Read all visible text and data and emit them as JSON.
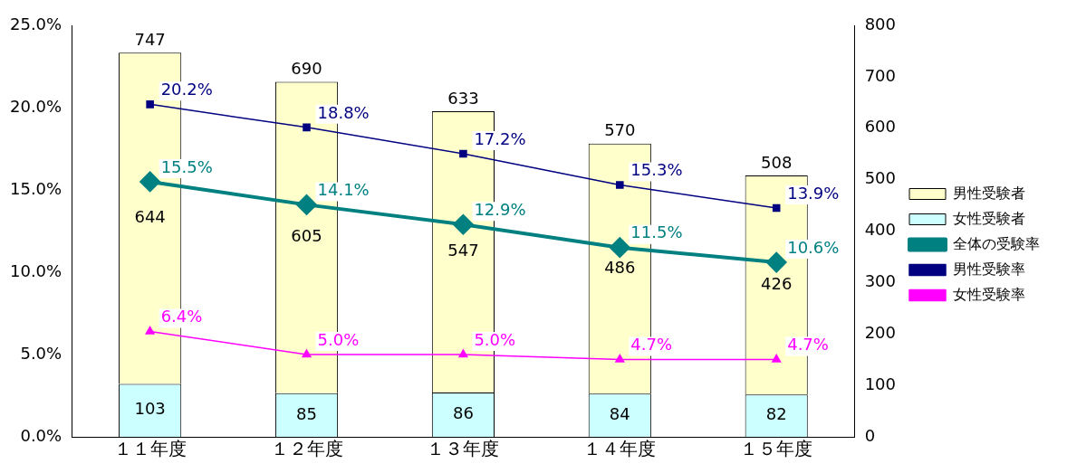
{
  "chart_data": {
    "type": "bar",
    "stacked": true,
    "categories": [
      "１１年度",
      "１２年度",
      "１３年度",
      "１４年度",
      "１５年度"
    ],
    "series": [
      {
        "name": "女性受験者",
        "axis": "y2",
        "color": "#ccffff",
        "values": [
          103,
          85,
          86,
          84,
          82
        ],
        "value_labels": [
          "103",
          "85",
          "86",
          "84",
          "82"
        ]
      },
      {
        "name": "男性受験者",
        "axis": "y2",
        "color": "#ffffcc",
        "values": [
          644,
          605,
          547,
          486,
          426
        ],
        "value_labels": [
          "644",
          "605",
          "547",
          "486",
          "426"
        ]
      },
      {
        "name": "全体の受験率",
        "type": "line",
        "color": "#008080",
        "marker": "diamond",
        "values": [
          15.5,
          14.1,
          12.9,
          11.5,
          10.6
        ],
        "value_labels": [
          "15.5%",
          "14.1%",
          "12.9%",
          "11.5%",
          "10.6%"
        ]
      },
      {
        "name": "男性受験率",
        "type": "line",
        "color": "#000080",
        "marker": "square",
        "values": [
          20.2,
          18.8,
          17.2,
          15.3,
          13.9
        ],
        "value_labels": [
          "20.2%",
          "18.8%",
          "17.2%",
          "15.3%",
          "13.9%"
        ]
      },
      {
        "name": "女性受験率",
        "type": "line",
        "color": "#ff00ff",
        "marker": "triangle",
        "values": [
          6.4,
          5.0,
          5.0,
          4.7,
          4.7
        ],
        "value_labels": [
          "6.4%",
          "5.0%",
          "5.0%",
          "4.7%",
          "4.7%"
        ]
      }
    ],
    "totals": [
      "747",
      "690",
      "633",
      "570",
      "508"
    ],
    "ylim": [
      0,
      25
    ],
    "yticks": [
      {
        "value": 0,
        "label": "0.0%"
      },
      {
        "value": 5,
        "label": "5.0%"
      },
      {
        "value": 10,
        "label": "10.0%"
      },
      {
        "value": 15,
        "label": "15.0%"
      },
      {
        "value": 20,
        "label": "20.0%"
      },
      {
        "value": 25,
        "label": "25.0%"
      }
    ],
    "y2lim": [
      0,
      800
    ],
    "y2ticks": [
      0,
      100,
      200,
      300,
      400,
      500,
      600,
      700,
      800
    ],
    "grid": false,
    "legend": "right"
  }
}
